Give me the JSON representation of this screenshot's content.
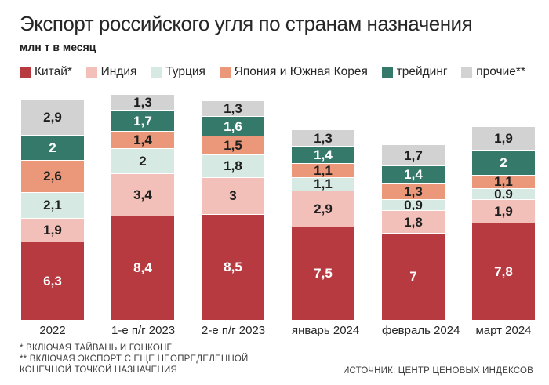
{
  "header": {
    "title": "Экспорт российского угля по странам назначения",
    "subtitle": "млн т в месяц"
  },
  "footer": {
    "note1": "* ВКЛЮЧАЯ ТАЙВАНЬ И ГОНКОНГ",
    "note2": "** ВКЛЮЧАЯ ЭКСПОРТ С ЕЩЕ НЕОПРЕДЕЛЕННОЙ",
    "note3": "КОНЕЧНОЙ ТОЧКОЙ НАЗНАЧЕНИЯ",
    "source": "ИСТОЧНИК: ЦЕНТР ЦЕНОВЫХ ИНДЕКСОВ"
  },
  "colors": {
    "china": "#b73a40",
    "india": "#f2c0b9",
    "turkey": "#d6eae3",
    "japan_korea": "#eb9779",
    "trading": "#34796a",
    "others": "#d2d2d2",
    "label_dark": "#1f1f1f",
    "label_light": "#ffffff"
  },
  "chart_data": {
    "type": "bar",
    "stacked": true,
    "title": "Экспорт российского угля по странам назначения",
    "ylabel": "млн т в месяц",
    "grid": false,
    "legend_position": "top",
    "categories": [
      "2022",
      "1-е п/г 2023",
      "2-е п/г 2023",
      "январь 2024",
      "февраль 2024",
      "март 2024"
    ],
    "series": [
      {
        "name": "Китай*",
        "color": "#b73a40",
        "label_color": "#ffffff",
        "values": [
          6.3,
          8.4,
          8.5,
          7.5,
          7.0,
          7.8
        ],
        "labels": [
          "6,3",
          "8,4",
          "8,5",
          "7,5",
          "7",
          "7,8"
        ]
      },
      {
        "name": "Индия",
        "color": "#f2c0b9",
        "label_color": "#1f1f1f",
        "values": [
          1.9,
          3.4,
          3.0,
          2.9,
          1.8,
          1.9
        ],
        "labels": [
          "1,9",
          "3,4",
          "3",
          "2,9",
          "1,8",
          "1,9"
        ]
      },
      {
        "name": "Турция",
        "color": "#d6eae3",
        "label_color": "#1f1f1f",
        "values": [
          2.1,
          2.0,
          1.8,
          1.1,
          0.9,
          0.9
        ],
        "labels": [
          "2,1",
          "2",
          "1,8",
          "1,1",
          "0,9",
          "0,9"
        ]
      },
      {
        "name": "Япония и Южная Корея",
        "color": "#eb9779",
        "label_color": "#1f1f1f",
        "values": [
          2.6,
          1.4,
          1.5,
          1.1,
          1.3,
          1.1
        ],
        "labels": [
          "2,6",
          "1,4",
          "1,5",
          "1,1",
          "1,3",
          "1,1"
        ]
      },
      {
        "name": "трейдинг",
        "color": "#34796a",
        "label_color": "#ffffff",
        "values": [
          2.0,
          1.7,
          1.6,
          1.4,
          1.4,
          2.0
        ],
        "labels": [
          "2",
          "1,7",
          "1,6",
          "1,4",
          "1,4",
          "2"
        ]
      },
      {
        "name": "прочие**",
        "color": "#d2d2d2",
        "label_color": "#1f1f1f",
        "values": [
          2.9,
          1.3,
          1.3,
          1.3,
          1.7,
          1.9
        ],
        "labels": [
          "2,9",
          "1,3",
          "1,3",
          "1,3",
          "1,7",
          "1,9"
        ]
      }
    ]
  }
}
